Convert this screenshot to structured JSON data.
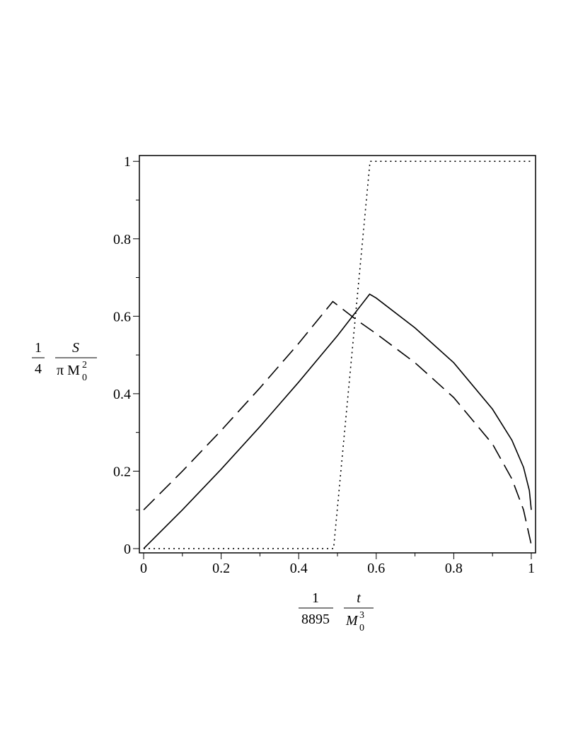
{
  "chart_data": {
    "type": "line",
    "ylabel": {
      "coef_num": "1",
      "coef_den": "4",
      "num": "S",
      "den": "π M",
      "den_sub": "0",
      "den_sup": "2"
    },
    "xlabel": {
      "coef_num": "1",
      "coef_den": "8895",
      "num": "t",
      "den": "M",
      "den_sub": "0",
      "den_sup": "3"
    },
    "xlim": [
      -0.011,
      1.011
    ],
    "ylim": [
      -0.011,
      1.015
    ],
    "xticks": [
      0,
      0.2,
      0.4,
      0.6,
      0.8,
      1
    ],
    "yticks": [
      0,
      0.2,
      0.4,
      0.6,
      0.8,
      1
    ],
    "minor_ticks": [
      0.1,
      0.3,
      0.5,
      0.7,
      0.9
    ],
    "series": [
      {
        "color": "#000000",
        "dash": "solid",
        "x": [
          0,
          0.1,
          0.2,
          0.3,
          0.4,
          0.5,
          0.583,
          0.6,
          0.7,
          0.8,
          0.9,
          0.95,
          0.98,
          0.995,
          1.0
        ],
        "values": [
          0,
          0.1,
          0.205,
          0.315,
          0.43,
          0.55,
          0.657,
          0.647,
          0.57,
          0.48,
          0.36,
          0.28,
          0.21,
          0.15,
          0.1
        ]
      },
      {
        "color": "#000000",
        "dash": "dashed",
        "x": [
          0,
          0.1,
          0.2,
          0.3,
          0.4,
          0.488,
          0.55,
          0.6,
          0.7,
          0.8,
          0.9,
          0.95,
          0.98,
          1.0
        ],
        "values": [
          0.1,
          0.2,
          0.305,
          0.415,
          0.53,
          0.638,
          0.59,
          0.555,
          0.48,
          0.39,
          0.27,
          0.18,
          0.1,
          0.01
        ]
      },
      {
        "color": "#000000",
        "dash": "dotted",
        "x": [
          0,
          0.49,
          0.584,
          1.0
        ],
        "values": [
          0,
          0,
          1,
          1
        ]
      }
    ]
  }
}
